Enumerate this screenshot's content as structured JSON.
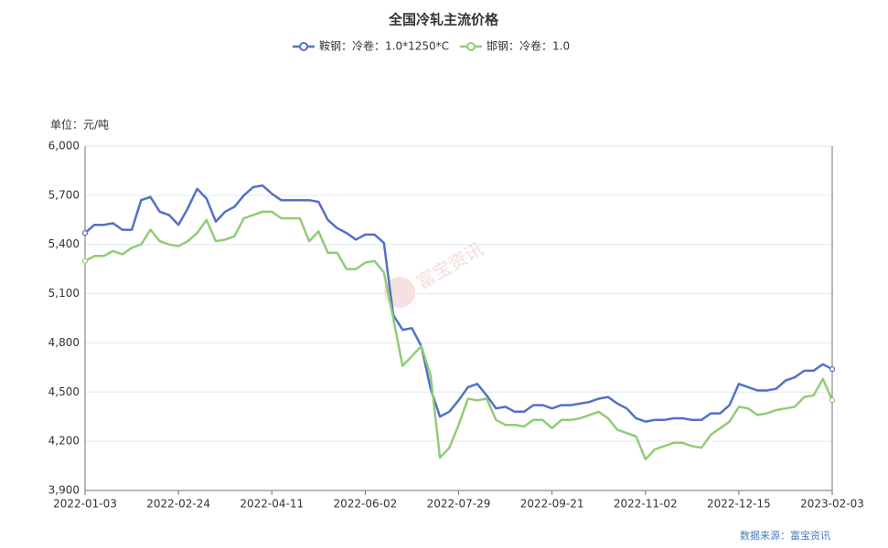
{
  "chart_data": {
    "type": "line",
    "title": "全国冷轧主流价格",
    "y_unit": "单位：元/吨",
    "source": "数据来源：富宝资讯",
    "watermark": "富宝资讯",
    "categories": [
      "2022-01-03",
      null,
      null,
      null,
      null,
      null,
      null,
      null,
      null,
      null,
      "2022-02-24",
      null,
      null,
      null,
      null,
      null,
      null,
      null,
      null,
      null,
      "2022-04-11",
      null,
      null,
      null,
      null,
      null,
      null,
      null,
      null,
      null,
      "2022-06-02",
      null,
      null,
      null,
      null,
      null,
      null,
      null,
      null,
      null,
      "2022-07-29",
      null,
      null,
      null,
      null,
      null,
      null,
      null,
      null,
      null,
      "2022-09-21",
      null,
      null,
      null,
      null,
      null,
      null,
      null,
      null,
      null,
      "2022-11-02",
      null,
      null,
      null,
      null,
      null,
      null,
      null,
      null,
      null,
      "2022-12-15",
      null,
      null,
      null,
      null,
      null,
      null,
      null,
      null,
      null,
      "2023-02-03"
    ],
    "series": [
      {
        "name": "鞍钢：冷卷：1.0*1250*C",
        "color": "#5470c6",
        "values": [
          5470,
          5520,
          5520,
          5530,
          5490,
          5490,
          5670,
          5690,
          5600,
          5580,
          5520,
          5620,
          5740,
          5680,
          5540,
          5600,
          5630,
          5700,
          5750,
          5760,
          5710,
          5670,
          5670,
          5670,
          5670,
          5660,
          5550,
          5500,
          5470,
          5430,
          5460,
          5460,
          5410,
          4970,
          4880,
          4890,
          4780,
          4520,
          4350,
          4380,
          4450,
          4530,
          4550,
          4480,
          4400,
          4410,
          4380,
          4380,
          4420,
          4420,
          4400,
          4420,
          4420,
          4430,
          4440,
          4460,
          4470,
          4430,
          4400,
          4340,
          4320,
          4330,
          4330,
          4340,
          4340,
          4330,
          4330,
          4370,
          4370,
          4420,
          4550,
          4530,
          4510,
          4510,
          4520,
          4570,
          4590,
          4630,
          4630,
          4670,
          4640
        ]
      },
      {
        "name": "邯钢：冷卷：1.0",
        "color": "#91cc75",
        "values": [
          5300,
          5330,
          5330,
          5360,
          5340,
          5380,
          5400,
          5490,
          5420,
          5400,
          5390,
          5420,
          5470,
          5550,
          5420,
          5430,
          5450,
          5560,
          5580,
          5600,
          5600,
          5560,
          5560,
          5560,
          5420,
          5480,
          5350,
          5350,
          5250,
          5250,
          5290,
          5300,
          5230,
          4950,
          4660,
          4720,
          4780,
          4600,
          4100,
          4160,
          4300,
          4460,
          4450,
          4460,
          4330,
          4300,
          4300,
          4290,
          4330,
          4330,
          4280,
          4330,
          4330,
          4340,
          4360,
          4380,
          4340,
          4270,
          4250,
          4230,
          4090,
          4150,
          4170,
          4190,
          4190,
          4170,
          4160,
          4240,
          4280,
          4320,
          4410,
          4400,
          4360,
          4370,
          4390,
          4400,
          4410,
          4470,
          4480,
          4580,
          4450
        ]
      }
    ],
    "ylim": [
      3900,
      6000
    ],
    "yticks": [
      {
        "value": 3900,
        "label": "3,900"
      },
      {
        "value": 4200,
        "label": "4,200"
      },
      {
        "value": 4500,
        "label": "4,500"
      },
      {
        "value": 4800,
        "label": "4,800"
      },
      {
        "value": 5100,
        "label": "5,100"
      },
      {
        "value": 5400,
        "label": "5,400"
      },
      {
        "value": 5700,
        "label": "5,700"
      },
      {
        "value": 6000,
        "label": "6,000"
      }
    ],
    "grid": true
  }
}
